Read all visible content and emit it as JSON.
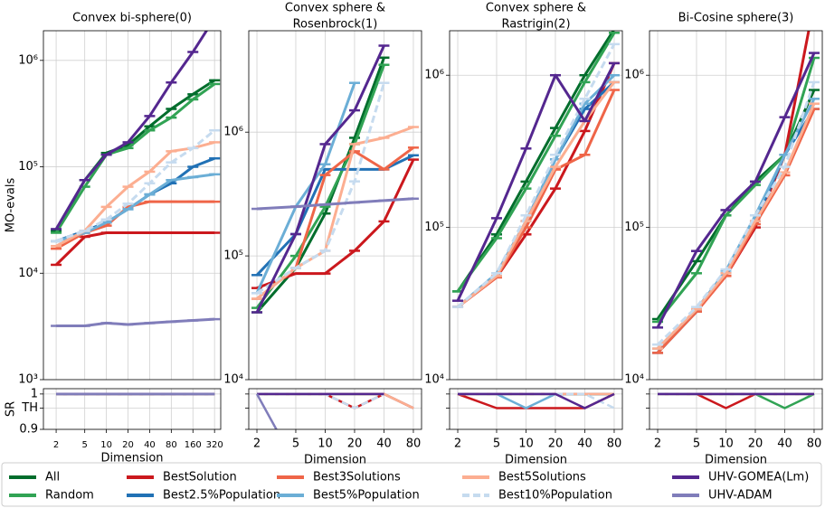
{
  "chart_data": [
    {
      "type": "line",
      "title": [
        "Convex bi-sphere(0)"
      ],
      "xlabel": "Dimension",
      "ylabel": "MO-evals",
      "sr_label": "SR",
      "log_x": true,
      "log_y": true,
      "grid": true,
      "x": [
        2,
        5,
        10,
        20,
        40,
        80,
        160,
        320
      ],
      "xticks": [
        2,
        5,
        10,
        20,
        40,
        80,
        160,
        320
      ],
      "xlim": [
        1.33,
        390
      ],
      "ylim": [
        1000,
        1900000
      ],
      "yticks": [
        {
          "value": 1000,
          "label": "10³"
        },
        {
          "value": 10000,
          "label": "10⁴"
        },
        {
          "value": 100000,
          "label": "10⁵"
        },
        {
          "value": 1000000,
          "label": "10⁶"
        }
      ],
      "sr_ylim": [
        0.9,
        1.015
      ],
      "sr_yticks": [
        {
          "value": 0.9,
          "label": "0.9"
        },
        {
          "value": 0.96,
          "label": "TH"
        },
        1
      ],
      "series": [
        {
          "name": "All",
          "color": "#006d2c",
          "values": [
            25000,
            75000,
            135000,
            160000,
            240000,
            350000,
            480000,
            650000
          ],
          "sr": [
            1,
            1,
            1,
            1,
            1,
            1,
            1,
            1
          ]
        },
        {
          "name": "Random",
          "color": "#31a354",
          "values": [
            24000,
            65000,
            130000,
            150000,
            220000,
            290000,
            430000,
            600000
          ],
          "sr": [
            1,
            1,
            1,
            1,
            1,
            1,
            1,
            1
          ]
        },
        {
          "name": "BestSolution",
          "color": "#cb181d",
          "values": [
            12000,
            22000,
            24000,
            24000,
            24000,
            24000,
            24000,
            24000
          ],
          "sr": [
            1,
            1,
            1,
            1,
            1,
            1,
            1,
            1
          ]
        },
        {
          "name": "Best2.5%Population",
          "color": "#2171b5",
          "values": [
            20000,
            25000,
            30000,
            40000,
            55000,
            70000,
            100000,
            120000
          ],
          "sr": [
            1,
            1,
            1,
            1,
            1,
            1,
            1,
            1
          ]
        },
        {
          "name": "Best3Solutions",
          "color": "#ef6548",
          "values": [
            17000,
            24000,
            28000,
            42000,
            47000,
            47000,
            47000,
            47000
          ],
          "sr": [
            1,
            1,
            1,
            1,
            1,
            1,
            1,
            1
          ]
        },
        {
          "name": "Best5%Population",
          "color": "#6baed6",
          "values": [
            20000,
            24000,
            30000,
            40000,
            55000,
            75000,
            80000,
            85000
          ],
          "sr": [
            1,
            1,
            1,
            1,
            1,
            1,
            1,
            1
          ]
        },
        {
          "name": "Best5Solutions",
          "color": "#fcae91",
          "values": [
            18000,
            25000,
            42000,
            65000,
            90000,
            140000,
            150000,
            170000
          ],
          "sr": [
            1,
            1,
            1,
            1,
            1,
            1,
            1,
            1
          ]
        },
        {
          "name": "Best10%Population",
          "color": "#c6dbef",
          "linestyle": "dashed",
          "values": [
            20000,
            25000,
            32000,
            45000,
            70000,
            110000,
            150000,
            220000
          ],
          "sr": [
            1,
            1,
            1,
            1,
            1,
            1,
            1,
            1
          ]
        },
        {
          "name": "UHV-GOMEA(Lm)",
          "color": "#54278f",
          "values": [
            26000,
            75000,
            130000,
            170000,
            300000,
            620000,
            1200000,
            2500000
          ],
          "sr": [
            1,
            1,
            1,
            1,
            1,
            1,
            1,
            1
          ]
        },
        {
          "name": "UHV-ADAM",
          "color": "#807dba",
          "values": [
            3200,
            3200,
            3400,
            3300,
            3400,
            3500,
            3600,
            3700
          ],
          "sr": [
            1,
            1,
            1,
            1,
            1,
            1,
            1,
            1
          ]
        }
      ]
    },
    {
      "type": "line",
      "title": [
        "Convex sphere &",
        "Rosenbrock(1)"
      ],
      "xlabel": "Dimension",
      "log_x": true,
      "log_y": true,
      "grid": true,
      "x": [
        2,
        5,
        10,
        20,
        40,
        80
      ],
      "xticks": [
        2,
        5,
        10,
        20,
        40,
        80
      ],
      "xlim": [
        1.65,
        97
      ],
      "ylim": [
        10000,
        6600000
      ],
      "yticks": [
        {
          "value": 10000,
          "label": "10⁴"
        },
        {
          "value": 100000,
          "label": "10⁵"
        },
        {
          "value": 1000000,
          "label": "10⁶"
        }
      ],
      "sr_ylim": [
        0.9,
        1.015
      ],
      "sr_yticks": [
        0.9,
        0.96,
        1
      ],
      "series": [
        {
          "color": "#006d2c",
          "values": [
            35000,
            80000,
            220000,
            900000,
            4000000,
            null
          ],
          "sr": [
            1,
            1,
            1,
            1,
            1,
            null
          ]
        },
        {
          "color": "#31a354",
          "values": [
            38000,
            100000,
            250000,
            800000,
            3500000,
            null
          ],
          "sr": [
            1,
            1,
            1,
            1,
            1,
            null
          ]
        },
        {
          "color": "#cb181d",
          "values": [
            55000,
            72000,
            72000,
            110000,
            190000,
            600000
          ],
          "sr": [
            1,
            1,
            1,
            0.96,
            1,
            0.96
          ]
        },
        {
          "color": "#2171b5",
          "values": [
            70000,
            150000,
            500000,
            500000,
            500000,
            650000
          ],
          "sr": [
            1,
            1,
            1,
            1,
            1,
            0.96
          ]
        },
        {
          "color": "#ef6548",
          "values": [
            45000,
            80000,
            450000,
            700000,
            500000,
            750000
          ],
          "sr": [
            1,
            1,
            1,
            1,
            1,
            0.96
          ]
        },
        {
          "color": "#6baed6",
          "values": [
            50000,
            250000,
            550000,
            2500000,
            null,
            null
          ],
          "sr": [
            1,
            1,
            1,
            1,
            null,
            null
          ]
        },
        {
          "color": "#fcae91",
          "values": [
            45000,
            80000,
            110000,
            800000,
            900000,
            1100000
          ],
          "sr": [
            1,
            1,
            1,
            1,
            1,
            0.96
          ]
        },
        {
          "color": "#c6dbef",
          "linestyle": "dashed",
          "values": [
            50000,
            80000,
            110000,
            400000,
            2500000,
            null
          ],
          "sr": [
            1,
            1,
            1,
            0.96,
            1,
            null
          ]
        },
        {
          "color": "#54278f",
          "values": [
            35000,
            150000,
            800000,
            1500000,
            5000000,
            null
          ],
          "sr": [
            1,
            1,
            1,
            1,
            1,
            null
          ]
        },
        {
          "color": "#807dba",
          "values": [
            240000,
            250000,
            260000,
            270000,
            280000,
            290000
          ],
          "sr": [
            1,
            0.8,
            null,
            null,
            null,
            null
          ]
        }
      ]
    },
    {
      "type": "line",
      "title": [
        "Convex sphere &",
        "Rastrigin(2)"
      ],
      "xlabel": "Dimension",
      "log_x": true,
      "log_y": true,
      "grid": true,
      "x": [
        2,
        5,
        10,
        20,
        40,
        80
      ],
      "xticks": [
        2,
        5,
        10,
        20,
        40,
        80
      ],
      "xlim": [
        1.65,
        97
      ],
      "ylim": [
        10000,
        1960000
      ],
      "yticks": [
        {
          "value": 10000,
          "label": "10⁴"
        },
        {
          "value": 100000,
          "label": "10⁵"
        },
        {
          "value": 1000000,
          "label": "10⁶"
        }
      ],
      "sr_ylim": [
        0.9,
        1.015
      ],
      "sr_yticks": [
        0.9,
        0.96,
        1
      ],
      "series": [
        {
          "color": "#006d2c",
          "values": [
            38000,
            90000,
            200000,
            450000,
            1000000,
            2000000
          ],
          "sr": [
            1,
            1,
            1,
            1,
            1,
            1
          ]
        },
        {
          "color": "#31a354",
          "values": [
            38000,
            85000,
            180000,
            400000,
            900000,
            1900000
          ],
          "sr": [
            1,
            1,
            1,
            1,
            1,
            1
          ]
        },
        {
          "color": "#cb181d",
          "values": [
            30000,
            47000,
            90000,
            180000,
            430000,
            1200000
          ],
          "sr": [
            1,
            0.96,
            0.96,
            0.96,
            0.96,
            1
          ]
        },
        {
          "color": "#2171b5",
          "values": [
            30000,
            48000,
            110000,
            280000,
            600000,
            900000
          ],
          "sr": [
            1,
            1,
            1,
            1,
            1,
            1
          ]
        },
        {
          "color": "#ef6548",
          "values": [
            30000,
            47000,
            100000,
            240000,
            300000,
            800000
          ],
          "sr": [
            1,
            1,
            1,
            1,
            1,
            1
          ]
        },
        {
          "color": "#6baed6",
          "values": [
            30000,
            50000,
            110000,
            280000,
            650000,
            1000000
          ],
          "sr": [
            1,
            1,
            0.96,
            1,
            1,
            1
          ]
        },
        {
          "color": "#fcae91",
          "values": [
            30000,
            48000,
            110000,
            250000,
            500000,
            900000
          ],
          "sr": [
            1,
            1,
            1,
            1,
            1,
            1
          ]
        },
        {
          "color": "#c6dbef",
          "linestyle": "dashed",
          "values": [
            30000,
            50000,
            120000,
            300000,
            700000,
            1600000
          ],
          "sr": [
            1,
            1,
            1,
            1,
            1,
            0.96
          ]
        },
        {
          "color": "#54278f",
          "values": [
            33000,
            115000,
            330000,
            1000000,
            500000,
            1200000
          ],
          "sr": [
            1,
            1,
            1,
            1,
            0.96,
            1
          ]
        }
      ]
    },
    {
      "type": "line",
      "title": [
        "Bi-Cosine sphere(3)"
      ],
      "xlabel": "Dimension",
      "log_x": true,
      "log_y": true,
      "grid": true,
      "x": [
        2,
        5,
        10,
        20,
        40,
        80
      ],
      "xticks": [
        2,
        5,
        10,
        20,
        40,
        80
      ],
      "xlim": [
        1.65,
        97
      ],
      "ylim": [
        10000,
        1960000
      ],
      "yticks": [
        {
          "value": 10000,
          "label": "10⁴"
        },
        {
          "value": 100000,
          "label": "10⁵"
        },
        {
          "value": 1000000,
          "label": "10⁶"
        }
      ],
      "sr_ylim": [
        0.9,
        1.015
      ],
      "sr_yticks": [
        0.9,
        0.96,
        1
      ],
      "series": [
        {
          "color": "#006d2c",
          "values": [
            25000,
            60000,
            120000,
            200000,
            300000,
            800000
          ],
          "sr": [
            1,
            1,
            1,
            1,
            1,
            1
          ]
        },
        {
          "color": "#31a354",
          "values": [
            24000,
            50000,
            120000,
            190000,
            300000,
            1300000
          ],
          "sr": [
            1,
            1,
            1,
            1,
            0.96,
            1
          ]
        },
        {
          "color": "#cb181d",
          "values": [
            15000,
            28000,
            48000,
            100000,
            300000,
            3000000
          ],
          "sr": [
            1,
            1,
            0.96,
            1,
            1,
            1
          ]
        },
        {
          "color": "#2171b5",
          "values": [
            15000,
            28000,
            50000,
            110000,
            300000,
            600000
          ],
          "sr": [
            1,
            1,
            1,
            1,
            1,
            1
          ]
        },
        {
          "color": "#ef6548",
          "values": [
            15000,
            28000,
            48000,
            105000,
            220000,
            600000
          ],
          "sr": [
            1,
            1,
            1,
            1,
            1,
            1
          ]
        },
        {
          "color": "#6baed6",
          "values": [
            16000,
            29000,
            52000,
            120000,
            300000,
            700000
          ],
          "sr": [
            1,
            1,
            1,
            1,
            1,
            1
          ]
        },
        {
          "color": "#fcae91",
          "values": [
            16000,
            29000,
            50000,
            110000,
            230000,
            650000
          ],
          "sr": [
            1,
            1,
            1,
            1,
            1,
            1
          ]
        },
        {
          "color": "#c6dbef",
          "linestyle": "dashed",
          "values": [
            17000,
            30000,
            53000,
            120000,
            250000,
            900000
          ],
          "sr": [
            1,
            1,
            1,
            1,
            1,
            1
          ]
        },
        {
          "color": "#54278f",
          "values": [
            22000,
            70000,
            130000,
            200000,
            530000,
            1400000
          ],
          "sr": [
            1,
            1,
            1,
            1,
            1,
            1
          ]
        }
      ]
    }
  ]
}
